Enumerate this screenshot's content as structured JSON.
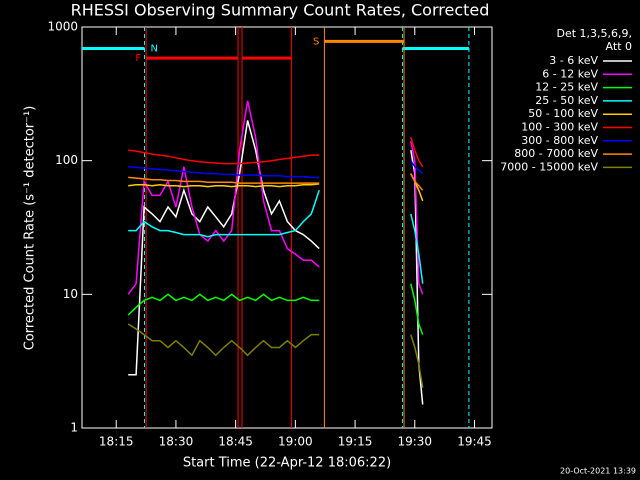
{
  "chart_data": {
    "type": "line",
    "title": "RHESSI Observing Summary Count Rates, Corrected",
    "x_label": "Start Time (22-Apr-12 18:06:22)",
    "y_label": "Corrected Count Rate (s⁻¹ detector⁻¹)",
    "footer": "20-Oct-2021 13:39",
    "legend_title": [
      "Det 1,3,5,6,9,",
      "Att 0"
    ],
    "legend_position": "right",
    "log_y": true,
    "xlim": [
      1086.4,
      1189.4
    ],
    "xticks": [
      {
        "value": 1095,
        "label": "18:15"
      },
      {
        "value": 1110,
        "label": "18:30"
      },
      {
        "value": 1125,
        "label": "18:45"
      },
      {
        "value": 1140,
        "label": "19:00"
      },
      {
        "value": 1155,
        "label": "19:15"
      },
      {
        "value": 1170,
        "label": "19:30"
      },
      {
        "value": 1185,
        "label": "19:45"
      }
    ],
    "ylim": [
      1,
      1000
    ],
    "yticks": [
      1,
      10,
      100,
      1000
    ],
    "x": [
      1098,
      1100,
      1102,
      1104,
      1106,
      1108,
      1110,
      1112,
      1114,
      1116,
      1118,
      1120,
      1122,
      1124,
      1126,
      1128,
      1130,
      1132,
      1134,
      1136,
      1138,
      1140,
      1142,
      1144,
      1146,
      1158,
      1169,
      1170,
      1171,
      1172
    ],
    "series": [
      {
        "name": "3 - 6 keV",
        "color": "#ffffff",
        "values": [
          2.5,
          2.5,
          45,
          40,
          35,
          45,
          38,
          60,
          40,
          35,
          45,
          38,
          32,
          40,
          80,
          200,
          120,
          60,
          40,
          50,
          35,
          30,
          28,
          25,
          22,
          null,
          120,
          80,
          3,
          1.5
        ]
      },
      {
        "name": "6 - 12 keV",
        "color": "#ff00ff",
        "values": [
          10,
          12,
          70,
          55,
          55,
          70,
          45,
          90,
          45,
          28,
          25,
          30,
          25,
          30,
          120,
          280,
          150,
          50,
          30,
          30,
          22,
          20,
          18,
          18,
          16,
          null,
          140,
          100,
          12,
          10
        ]
      },
      {
        "name": "12 - 25 keV",
        "color": "#00ff00",
        "values": [
          7,
          8,
          9,
          9.5,
          9,
          10,
          9,
          9.5,
          9,
          10,
          9,
          9.5,
          9,
          10,
          9,
          9.5,
          9,
          10,
          9,
          9.5,
          9,
          9,
          9.5,
          9,
          9,
          null,
          12,
          9,
          6,
          5
        ]
      },
      {
        "name": "25 - 50 keV",
        "color": "#00ffff",
        "values": [
          30,
          30,
          35,
          32,
          30,
          30,
          29,
          28,
          28,
          28,
          27,
          28,
          28,
          28,
          28,
          28,
          28,
          28,
          28,
          28,
          29,
          30,
          35,
          40,
          60,
          null,
          40,
          30,
          20,
          12
        ]
      },
      {
        "name": "50 - 100 keV",
        "color": "#ffcc00",
        "values": [
          65,
          66,
          66,
          65,
          66,
          65,
          65,
          64,
          65,
          65,
          64,
          65,
          65,
          64,
          65,
          65,
          64,
          65,
          65,
          64,
          65,
          65,
          66,
          66,
          67,
          null,
          80,
          70,
          60,
          50
        ]
      },
      {
        "name": "100 - 300 keV",
        "color": "#ff0000",
        "values": [
          120,
          118,
          115,
          112,
          110,
          108,
          105,
          102,
          100,
          98,
          97,
          96,
          95,
          95,
          95,
          96,
          97,
          98,
          100,
          102,
          104,
          106,
          108,
          110,
          110,
          null,
          150,
          120,
          100,
          90
        ]
      },
      {
        "name": "300 - 800 keV",
        "color": "#0000ff",
        "values": [
          90,
          89,
          88,
          87,
          86,
          85,
          84,
          83,
          82,
          81,
          80,
          80,
          79,
          79,
          78,
          78,
          78,
          77,
          77,
          77,
          76,
          76,
          76,
          75,
          75,
          null,
          100,
          90,
          85,
          80
        ]
      },
      {
        "name": "800 - 7000 keV",
        "color": "#ff8800",
        "values": [
          75,
          74,
          73,
          72,
          72,
          71,
          71,
          70,
          70,
          70,
          69,
          69,
          69,
          69,
          68,
          68,
          68,
          68,
          68,
          68,
          68,
          68,
          68,
          68,
          68,
          null,
          80,
          70,
          65,
          60
        ]
      },
      {
        "name": "7000 - 15000 keV",
        "color": "#808000",
        "values": [
          6,
          5.5,
          5,
          4.5,
          4.5,
          4,
          4.5,
          4,
          3.5,
          4.5,
          4,
          3.5,
          4,
          4.5,
          4,
          3.5,
          4,
          4.5,
          4,
          4,
          4.5,
          4,
          4.5,
          5,
          5,
          null,
          5,
          4,
          3,
          2
        ]
      }
    ],
    "flags": [
      {
        "label": "N",
        "color": "#00ffff",
        "level": 690,
        "segments": [
          [
            1086.4,
            1102.1
          ],
          [
            1166.9,
            1183.6
          ]
        ]
      },
      {
        "label": "F",
        "color": "#ff0000",
        "level": 585,
        "segments": [
          [
            1102.5,
            1125.6
          ],
          [
            1126.6,
            1139
          ]
        ]
      },
      {
        "label": "S",
        "color": "#ff8800",
        "level": 780,
        "segments": [
          [
            1147.3,
            1167.3
          ]
        ]
      }
    ]
  }
}
